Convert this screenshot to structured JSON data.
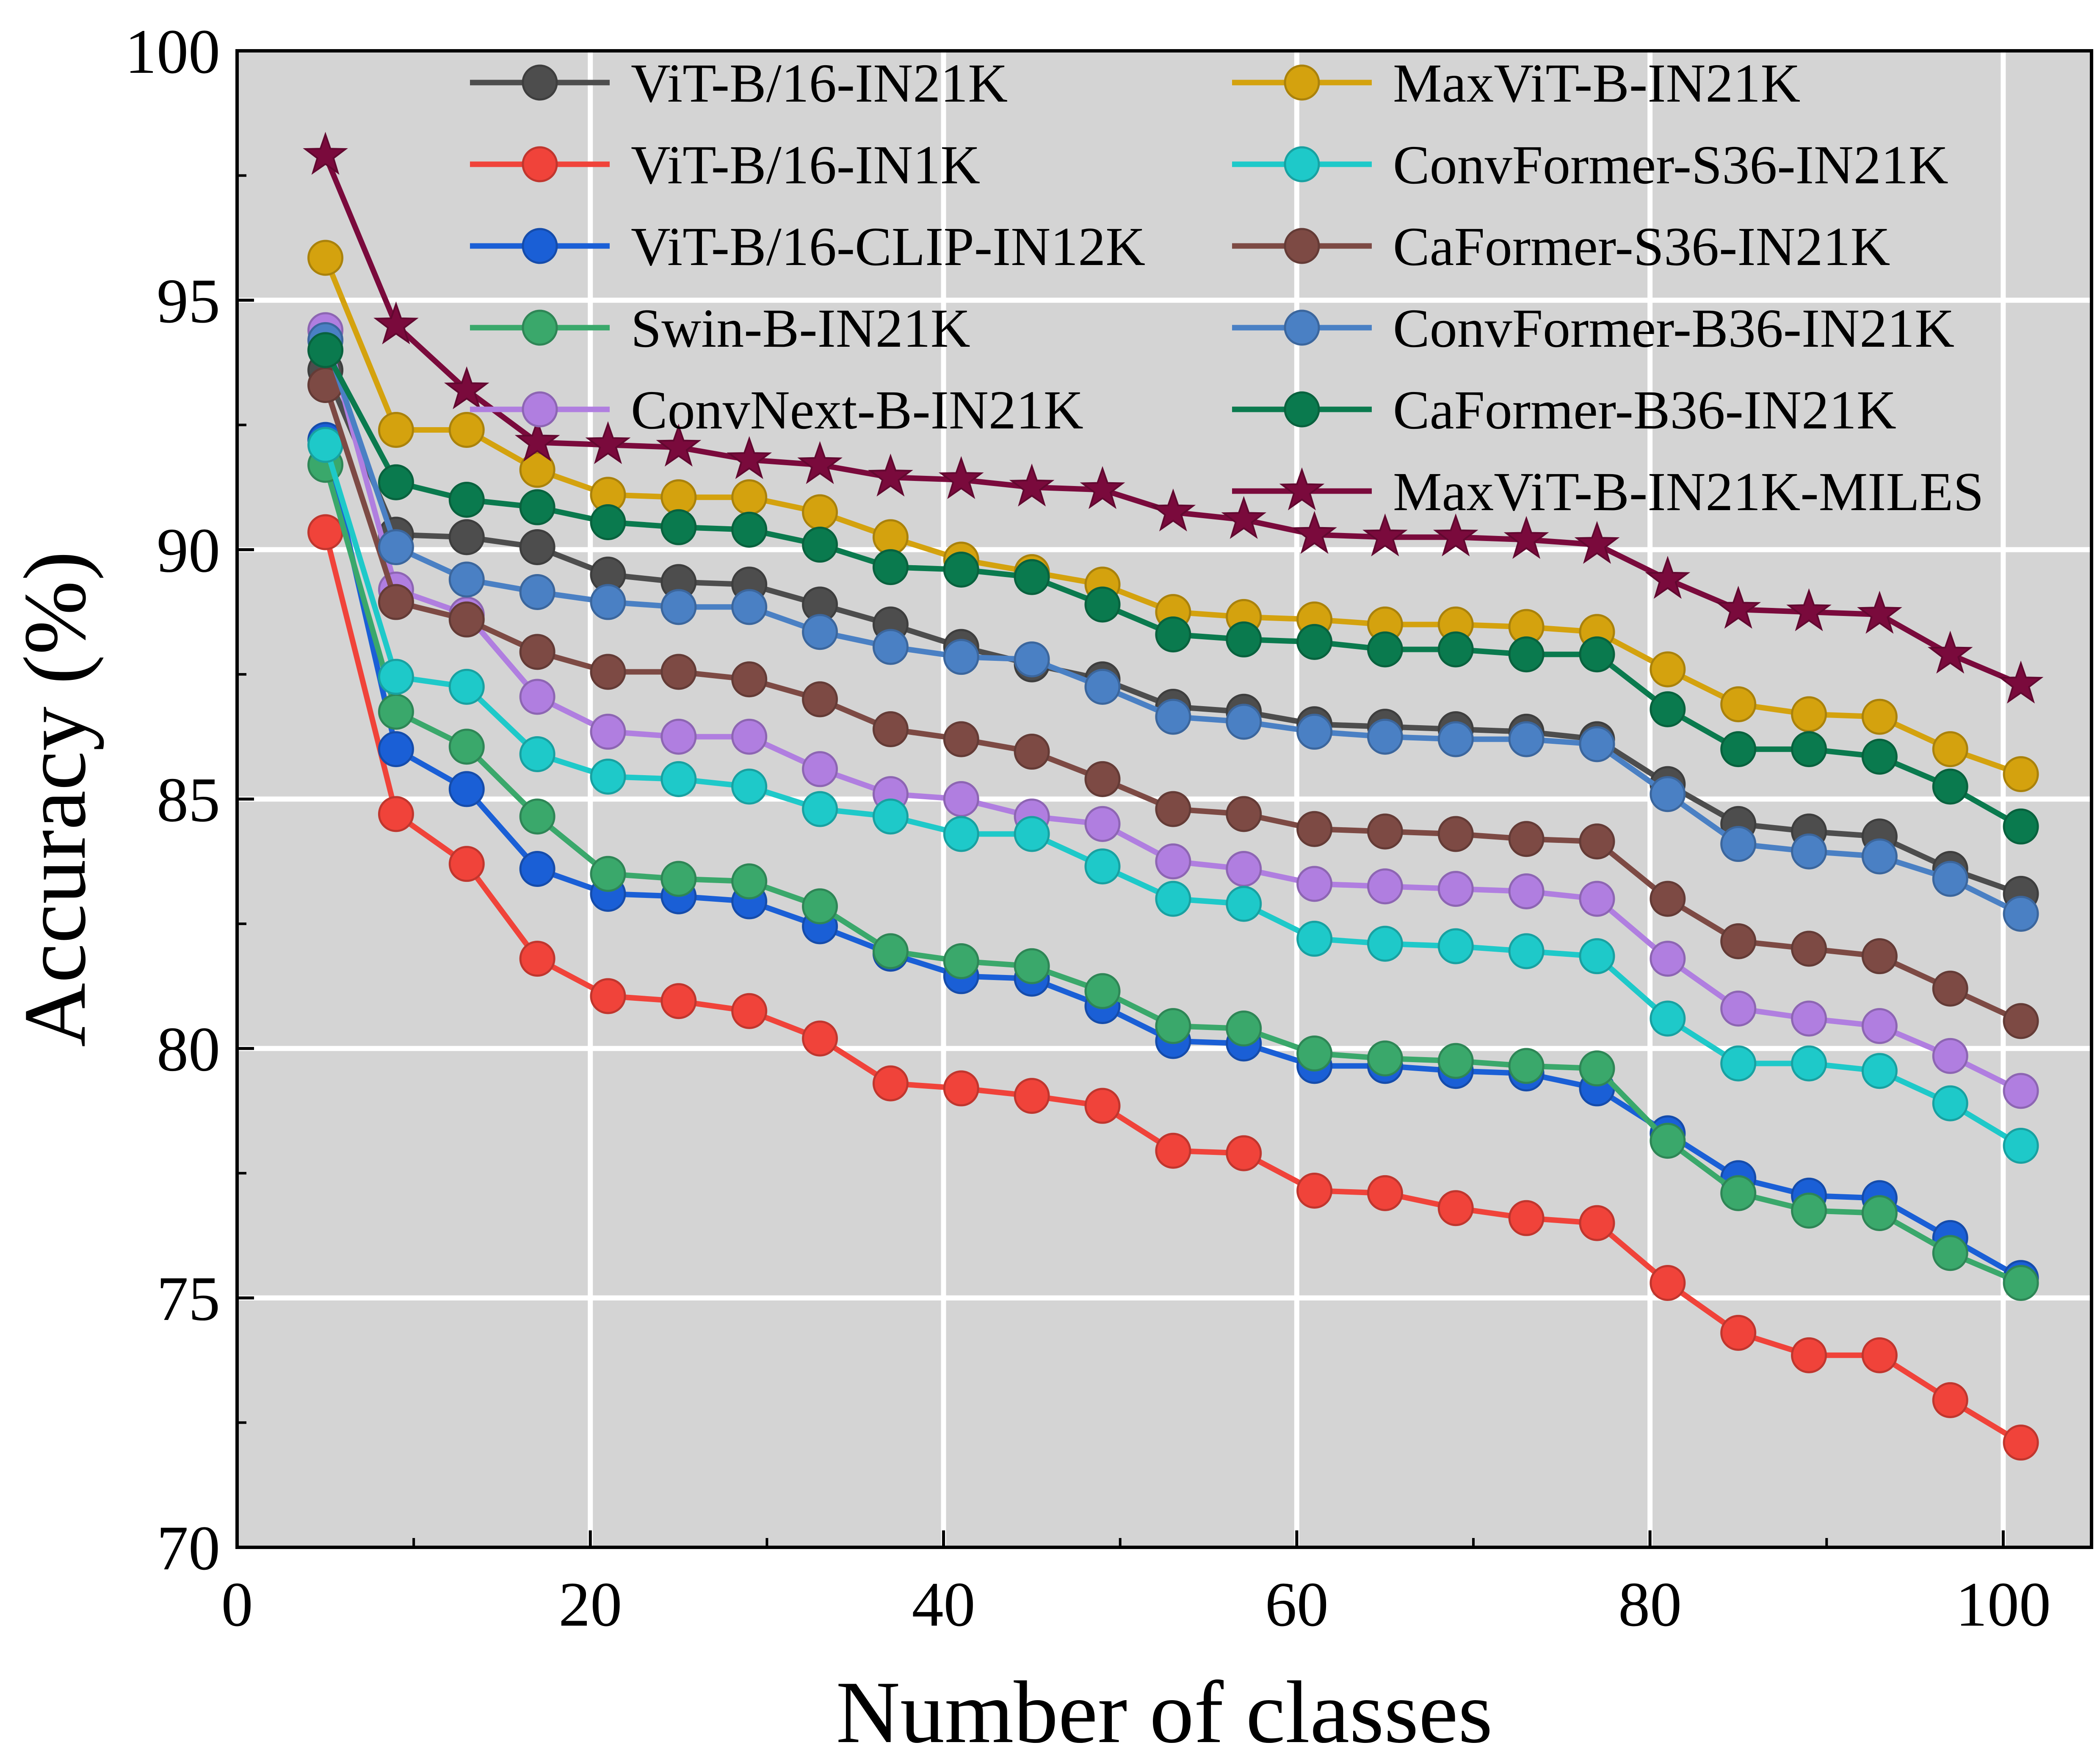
{
  "chart_data": {
    "type": "line",
    "title": "",
    "xlabel": "Number of classes",
    "ylabel": "Accuracy (%)",
    "xlim": [
      0,
      105
    ],
    "ylim": [
      70,
      100
    ],
    "xticks": [
      0,
      20,
      40,
      60,
      80,
      100
    ],
    "yticks": [
      70,
      75,
      80,
      85,
      90,
      95,
      100
    ],
    "grid": true,
    "legend_placement": "top",
    "background": "#d4d4d4",
    "x": [
      5,
      9,
      13,
      17,
      21,
      25,
      29,
      33,
      37,
      41,
      45,
      49,
      53,
      57,
      61,
      65,
      69,
      73,
      77,
      81,
      85,
      89,
      93,
      97,
      101
    ],
    "series": [
      {
        "name": "ViT-B/16-IN21K",
        "color": "#4d4d4d",
        "marker": "circle",
        "values": [
          93.6,
          90.3,
          90.25,
          90.05,
          89.5,
          89.35,
          89.3,
          88.9,
          88.5,
          88.05,
          87.7,
          87.4,
          86.85,
          86.75,
          86.5,
          86.45,
          86.4,
          86.35,
          86.2,
          85.3,
          84.5,
          84.35,
          84.25,
          83.6,
          83.1
        ]
      },
      {
        "name": "ViT-B/16-IN1K",
        "color": "#f0433a",
        "marker": "circle",
        "values": [
          90.35,
          84.7,
          83.7,
          81.8,
          81.05,
          80.95,
          80.75,
          80.2,
          79.3,
          79.2,
          79.05,
          78.85,
          77.95,
          77.9,
          77.15,
          77.1,
          76.8,
          76.6,
          76.5,
          75.3,
          74.3,
          73.85,
          73.85,
          72.95,
          72.1
        ]
      },
      {
        "name": "ViT-B/16-CLIP-IN12K",
        "color": "#1a5fd6",
        "marker": "circle",
        "values": [
          92.2,
          86.0,
          85.2,
          83.6,
          83.1,
          83.05,
          82.95,
          82.45,
          81.9,
          81.45,
          81.4,
          80.85,
          80.15,
          80.1,
          79.65,
          79.65,
          79.55,
          79.5,
          79.2,
          78.3,
          77.4,
          77.05,
          77.0,
          76.2,
          75.4
        ]
      },
      {
        "name": "Swin-B-IN21K",
        "color": "#3aa86b",
        "marker": "circle",
        "values": [
          91.7,
          86.75,
          86.05,
          84.65,
          83.5,
          83.4,
          83.35,
          82.85,
          81.95,
          81.75,
          81.65,
          81.15,
          80.45,
          80.4,
          79.9,
          79.8,
          79.75,
          79.65,
          79.6,
          78.15,
          77.1,
          76.75,
          76.7,
          75.9,
          75.3
        ]
      },
      {
        "name": "ConvNext-B-IN21K",
        "color": "#b07ee0",
        "marker": "circle",
        "values": [
          94.4,
          89.2,
          88.7,
          87.05,
          86.35,
          86.25,
          86.25,
          85.6,
          85.1,
          85.0,
          84.65,
          84.5,
          83.75,
          83.6,
          83.3,
          83.25,
          83.2,
          83.15,
          83.0,
          81.8,
          80.8,
          80.6,
          80.45,
          79.85,
          79.15
        ]
      },
      {
        "name": "MaxViT-B-IN21K",
        "color": "#d4a20e",
        "marker": "circle",
        "values": [
          95.85,
          92.4,
          92.4,
          91.6,
          91.1,
          91.05,
          91.05,
          90.75,
          90.25,
          89.8,
          89.55,
          89.3,
          88.75,
          88.65,
          88.6,
          88.5,
          88.5,
          88.45,
          88.35,
          87.6,
          86.9,
          86.7,
          86.65,
          86.0,
          85.5
        ]
      },
      {
        "name": "ConvFormer-S36-IN21K",
        "color": "#1ec9c9",
        "marker": "circle",
        "values": [
          92.1,
          87.45,
          87.25,
          85.9,
          85.45,
          85.4,
          85.25,
          84.8,
          84.65,
          84.3,
          84.3,
          83.65,
          83.0,
          82.9,
          82.2,
          82.1,
          82.05,
          81.95,
          81.85,
          80.6,
          79.7,
          79.7,
          79.55,
          78.9,
          78.05
        ]
      },
      {
        "name": "CaFormer-S36-IN21K",
        "color": "#7d4a44",
        "marker": "circle",
        "values": [
          93.3,
          88.95,
          88.6,
          87.95,
          87.55,
          87.55,
          87.4,
          87.0,
          86.4,
          86.2,
          85.95,
          85.4,
          84.8,
          84.7,
          84.4,
          84.35,
          84.3,
          84.2,
          84.15,
          83.0,
          82.15,
          82.0,
          81.85,
          81.2,
          80.55
        ]
      },
      {
        "name": "ConvFormer-B36-IN21K",
        "color": "#4a80c4",
        "marker": "circle",
        "values": [
          94.2,
          90.05,
          89.4,
          89.15,
          88.95,
          88.85,
          88.85,
          88.35,
          88.05,
          87.85,
          87.8,
          87.25,
          86.65,
          86.55,
          86.35,
          86.25,
          86.2,
          86.2,
          86.1,
          85.1,
          84.1,
          83.95,
          83.85,
          83.4,
          82.7
        ]
      },
      {
        "name": "CaFormer-B36-IN21K",
        "color": "#0a7a4e",
        "marker": "circle",
        "values": [
          94.0,
          91.35,
          91.0,
          90.85,
          90.55,
          90.45,
          90.4,
          90.1,
          89.65,
          89.6,
          89.45,
          88.9,
          88.3,
          88.2,
          88.15,
          88.0,
          88.0,
          87.9,
          87.9,
          86.8,
          86.0,
          86.0,
          85.85,
          85.25,
          84.45
        ]
      },
      {
        "name": "MaxViT-B-IN21K-MILES",
        "color": "#7a0a3c",
        "marker": "star",
        "values": [
          97.9,
          94.5,
          93.2,
          92.15,
          92.1,
          92.05,
          91.8,
          91.7,
          91.45,
          91.4,
          91.25,
          91.2,
          90.75,
          90.6,
          90.3,
          90.25,
          90.25,
          90.2,
          90.1,
          89.4,
          88.8,
          88.75,
          88.7,
          87.9,
          87.3
        ]
      }
    ]
  }
}
